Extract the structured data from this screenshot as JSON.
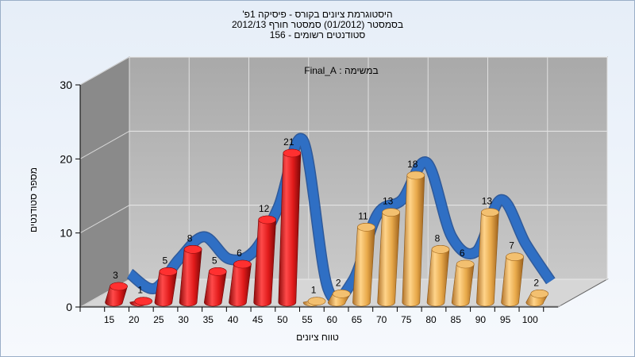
{
  "chart_data": {
    "type": "bar",
    "title_lines": [
      "היסטוגרמת ציונים בקורס - פיסיקה 1פ'",
      "בסמסטר  (01/2012)  סמסטר חורף 2012/13",
      "סטודנטים רשומים - 156"
    ],
    "annotation": "במשימה : Final_A",
    "xlabel": "טווח ציונים",
    "ylabel": "מספר סטודנטים",
    "categories": [
      "15",
      "20",
      "25",
      "30",
      "35",
      "40",
      "45",
      "50",
      "55",
      "60",
      "65",
      "70",
      "75",
      "80",
      "85",
      "90",
      "95",
      "100"
    ],
    "values": [
      3,
      1,
      5,
      8,
      5,
      6,
      12,
      21,
      1,
      2,
      11,
      13,
      18,
      8,
      6,
      13,
      7,
      2
    ],
    "bar_colors": [
      "#e11b1b",
      "#e11b1b",
      "#e11b1b",
      "#e11b1b",
      "#e11b1b",
      "#e11b1b",
      "#e11b1b",
      "#e11b1b",
      "#e8a94a",
      "#e8a94a",
      "#e8a94a",
      "#e8a94a",
      "#e8a94a",
      "#e8a94a",
      "#e8a94a",
      "#e8a94a",
      "#e8a94a",
      "#e8a94a"
    ],
    "trend_color": "#2f6fc4",
    "ylim": [
      0,
      30
    ],
    "yticks": [
      0,
      10,
      20,
      30
    ],
    "grid": true,
    "style": "3d-cylinder"
  }
}
